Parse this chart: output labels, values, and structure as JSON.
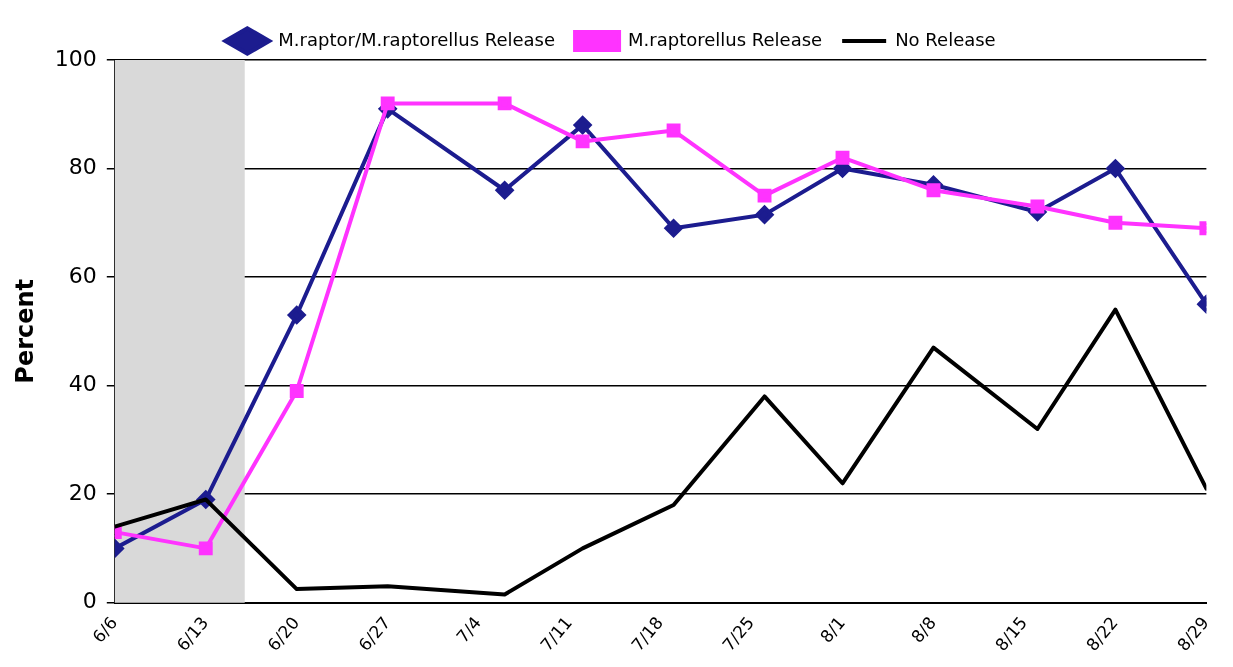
{
  "chart_data": {
    "type": "line",
    "ylabel": "Percent",
    "x": [
      "--06-06",
      "--06-13",
      "--06-20",
      "--06-27",
      "--07-06",
      "--07-12",
      "--07-19",
      "--07-26",
      "--08-01",
      "--08-08",
      "--08-16",
      "--08-22",
      "--08-29"
    ],
    "series": [
      {
        "name": "M.raptor/M.raptorellus Release",
        "color": "#1c1c8f",
        "marker": "diamond",
        "values": [
          10,
          19,
          53,
          91,
          76,
          88,
          69,
          71.5,
          80,
          77,
          72,
          80,
          55
        ]
      },
      {
        "name": "M.raptorellus Release",
        "color": "#ff33ff",
        "marker": "square",
        "values": [
          13,
          10,
          39,
          92,
          92,
          85,
          87,
          75,
          82,
          76,
          73,
          70,
          69
        ]
      },
      {
        "name": "No Release",
        "color": "#000000",
        "marker": "none",
        "values": [
          14,
          19,
          2.5,
          3,
          1.5,
          10,
          18,
          38,
          22,
          47,
          32,
          54,
          21
        ]
      }
    ],
    "xlim": [
      "--06-06",
      "--08-29"
    ],
    "xticks": [
      {
        "value": "--06-06",
        "label": "6/6"
      },
      {
        "value": "--06-13",
        "label": "6/13"
      },
      {
        "value": "--06-20",
        "label": "6/20"
      },
      {
        "value": "--06-27",
        "label": "6/27"
      },
      {
        "value": "--07-04",
        "label": "7/4"
      },
      {
        "value": "--07-11",
        "label": "7/11"
      },
      {
        "value": "--07-18",
        "label": "7/18"
      },
      {
        "value": "--07-25",
        "label": "7/25"
      },
      {
        "value": "--08-01",
        "label": "8/1"
      },
      {
        "value": "--08-08",
        "label": "8/8"
      },
      {
        "value": "--08-15",
        "label": "8/15"
      },
      {
        "value": "--08-22",
        "label": "8/22"
      },
      {
        "value": "--08-29",
        "label": "8/29"
      }
    ],
    "ylim": [
      0,
      100
    ],
    "yticks": [
      0,
      20,
      40,
      60,
      80,
      100
    ],
    "bands": [
      {
        "axis": "x",
        "from": "--06-06",
        "to": "--06-16",
        "color": "#d9d9d9"
      }
    ],
    "grid": "y",
    "legend": "top",
    "line_style": "solid"
  }
}
